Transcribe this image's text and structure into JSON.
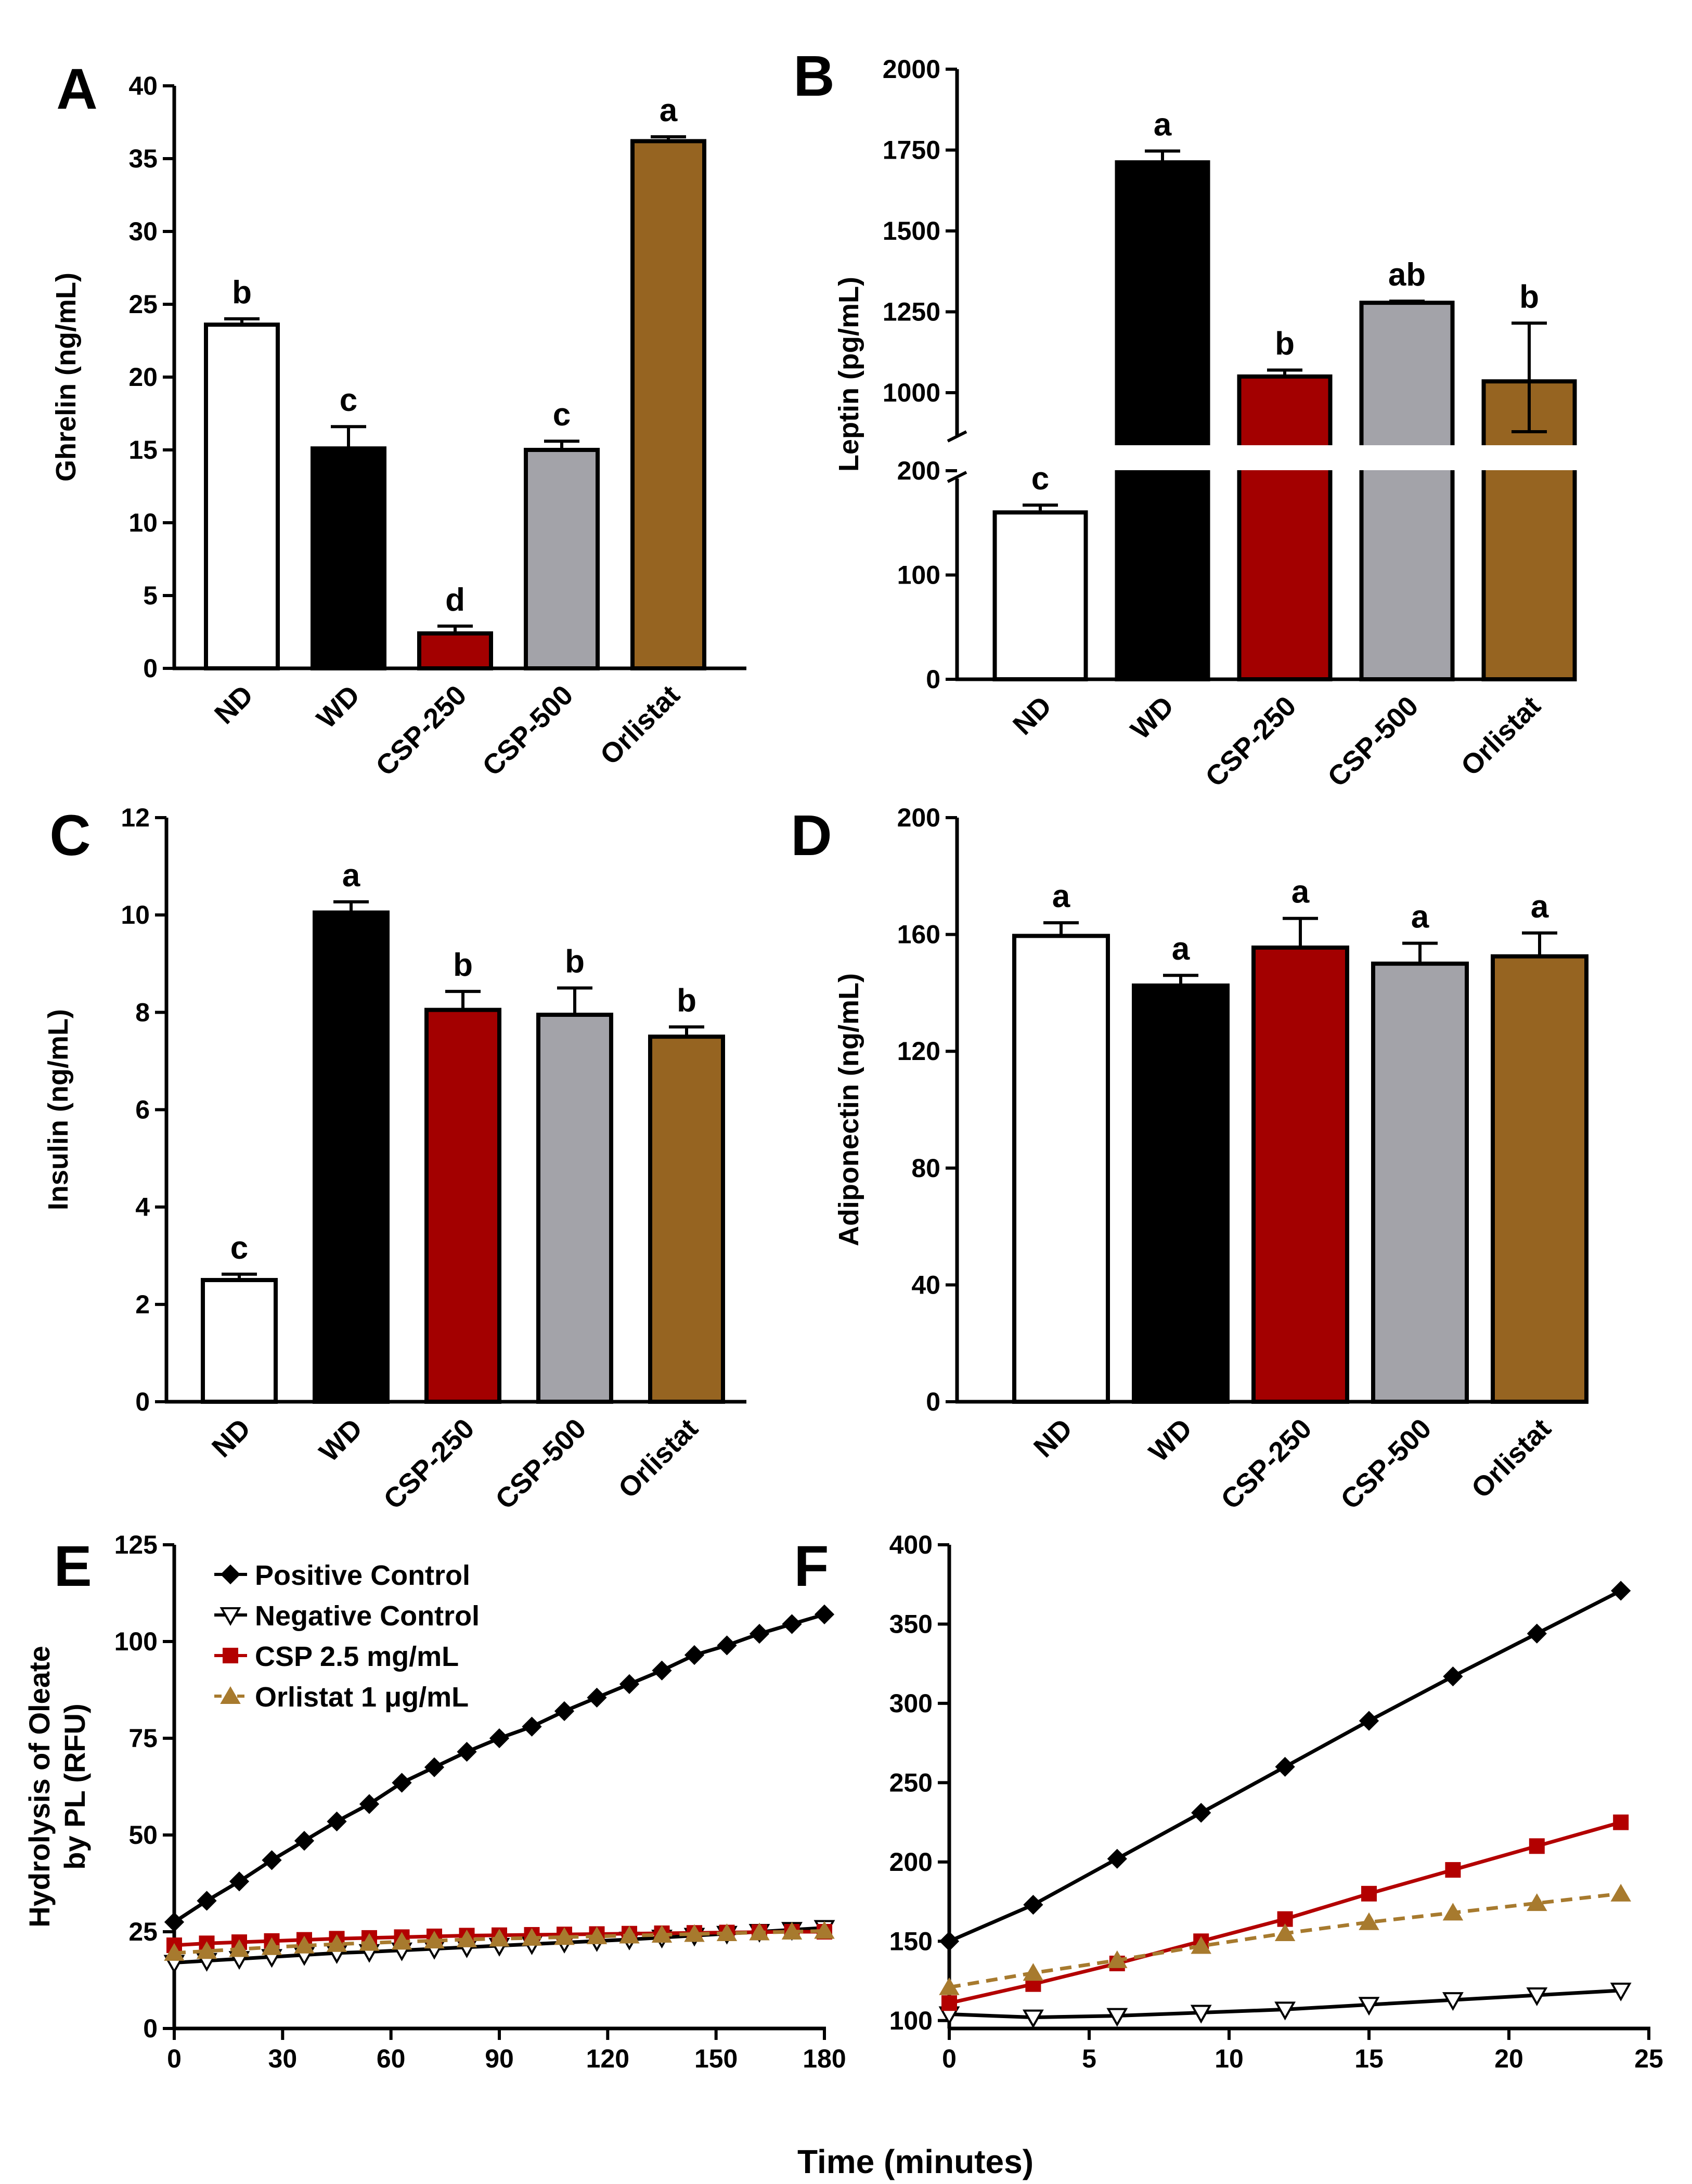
{
  "shared_xlabel": "Time (minutes)",
  "colors": {
    "ND": "#ffffff",
    "WD": "#000000",
    "CSP-250": "#a30000",
    "CSP-500": "#a3a3a9",
    "Orlistat": "#966421",
    "positive": "#000000",
    "negative": "#000000",
    "csp": "#b30000",
    "orlistat": "#a77a2e"
  },
  "chart_data": [
    {
      "panel": "A",
      "type": "bar",
      "ylabel": "Ghrelin (ng/mL)",
      "categories": [
        "ND",
        "WD",
        "CSP-250",
        "CSP-500",
        "Orlistat"
      ],
      "values": [
        23.6,
        15.1,
        2.4,
        15.0,
        36.2
      ],
      "errors": [
        0.4,
        1.5,
        0.5,
        0.6,
        0.3
      ],
      "letters": [
        "b",
        "c",
        "d",
        "c",
        "a"
      ],
      "ylim": [
        0,
        40
      ],
      "yticks": [
        0,
        5,
        10,
        15,
        20,
        25,
        30,
        35,
        40
      ]
    },
    {
      "panel": "B",
      "type": "bar",
      "ylabel": "Leptin (pg/mL)",
      "categories": [
        "ND",
        "WD",
        "CSP-250",
        "CSP-500",
        "Orlistat"
      ],
      "values": [
        160,
        1712,
        1050,
        1278,
        1035
      ],
      "errors": [
        7,
        35,
        20,
        5,
        180
      ],
      "letters": [
        "c",
        "a",
        "b",
        "ab",
        "b"
      ],
      "axis_break": {
        "lower": [
          0,
          200
        ],
        "upper": [
          1000,
          2000
        ]
      },
      "yticks_lower": [
        0,
        100,
        200
      ],
      "yticks_upper": [
        1000,
        1250,
        1500,
        1750,
        2000
      ]
    },
    {
      "panel": "C",
      "type": "bar",
      "ylabel": "Insulin (ng/mL)",
      "categories": [
        "ND",
        "WD",
        "CSP-250",
        "CSP-500",
        "Orlistat"
      ],
      "values": [
        2.5,
        10.05,
        8.05,
        7.95,
        7.5
      ],
      "errors": [
        0.12,
        0.22,
        0.38,
        0.55,
        0.2
      ],
      "letters": [
        "c",
        "a",
        "b",
        "b",
        "b"
      ],
      "ylim": [
        0,
        12
      ],
      "yticks": [
        0,
        2,
        4,
        6,
        8,
        10,
        12
      ]
    },
    {
      "panel": "D",
      "type": "bar",
      "ylabel": "Adiponectin (ng/mL)",
      "categories": [
        "ND",
        "WD",
        "CSP-250",
        "CSP-500",
        "Orlistat"
      ],
      "values": [
        159.5,
        142.5,
        155.5,
        150.0,
        152.5
      ],
      "errors": [
        4.5,
        3.5,
        10.0,
        7.0,
        8.0
      ],
      "letters": [
        "a",
        "a",
        "a",
        "a",
        "a"
      ],
      "ylim": [
        0,
        200
      ],
      "yticks": [
        0,
        40,
        80,
        120,
        160,
        200
      ]
    },
    {
      "panel": "E",
      "type": "line",
      "ylabel_lines": [
        "Hydrolysis of Oleate",
        "by PL (RFU)"
      ],
      "xlabel": "",
      "xlim": [
        0,
        180
      ],
      "ylim": [
        0,
        125
      ],
      "xticks": [
        0,
        30,
        60,
        90,
        120,
        150,
        180
      ],
      "yticks": [
        0,
        25,
        50,
        75,
        100,
        125
      ],
      "legend_position": "top-left",
      "x": [
        0,
        9,
        18,
        27,
        36,
        45,
        54,
        63,
        72,
        81,
        90,
        99,
        108,
        117,
        126,
        135,
        144,
        153,
        162,
        171,
        180
      ],
      "series": [
        {
          "name": "Positive Control",
          "key": "positive",
          "marker": "diamond",
          "dashed": false,
          "values": [
            27.5,
            33,
            38,
            43.5,
            48.5,
            53.5,
            58,
            63.5,
            67.5,
            71.5,
            75,
            78,
            82,
            85.5,
            89,
            92.5,
            96.5,
            99,
            102,
            104.5,
            107
          ]
        },
        {
          "name": "Negative Control",
          "key": "negative",
          "marker": "triangle-down",
          "dashed": false,
          "values": [
            17,
            17.5,
            18,
            18.5,
            19,
            19.5,
            19.8,
            20.2,
            20.6,
            21,
            21.4,
            21.8,
            22.2,
            22.6,
            23,
            23.5,
            24,
            24.5,
            25,
            25.5,
            26
          ]
        },
        {
          "name": "CSP 2.5 mg/mL",
          "key": "csp",
          "marker": "square",
          "dashed": false,
          "values": [
            21.5,
            22,
            22.3,
            22.6,
            22.9,
            23.2,
            23.4,
            23.6,
            23.8,
            24,
            24.1,
            24.2,
            24.3,
            24.4,
            24.5,
            24.6,
            24.7,
            24.8,
            24.9,
            25,
            25
          ]
        },
        {
          "name": "Orlistat 1 μg/mL",
          "key": "orlistat",
          "marker": "triangle-up",
          "dashed": true,
          "values": [
            19.5,
            20,
            20.5,
            21,
            21.4,
            21.8,
            22.1,
            22.4,
            22.7,
            23,
            23.2,
            23.4,
            23.6,
            23.8,
            24,
            24.2,
            24.4,
            24.6,
            24.8,
            25,
            25.2
          ]
        }
      ]
    },
    {
      "panel": "F",
      "type": "line",
      "xlim": [
        0,
        25
      ],
      "ylim": [
        95,
        400
      ],
      "xticks": [
        0,
        5,
        10,
        15,
        20,
        25
      ],
      "yticks": [
        100,
        150,
        200,
        250,
        300,
        350,
        400
      ],
      "x": [
        0,
        3,
        6,
        9,
        12,
        15,
        18,
        21,
        24
      ],
      "series": [
        {
          "name": "Positive Control",
          "key": "positive",
          "marker": "diamond",
          "dashed": false,
          "values": [
            150,
            173,
            202,
            231,
            260,
            289,
            317,
            344,
            371
          ]
        },
        {
          "name": "Negative Control",
          "key": "negative",
          "marker": "triangle-down",
          "dashed": false,
          "values": [
            104,
            102,
            103,
            105,
            107,
            110,
            113,
            116,
            119
          ]
        },
        {
          "name": "CSP 2.5 mg/mL",
          "key": "csp",
          "marker": "square",
          "dashed": false,
          "values": [
            111,
            123,
            136,
            150,
            164,
            180,
            195,
            210,
            225
          ]
        },
        {
          "name": "Orlistat 1 μg/mL",
          "key": "orlistat",
          "marker": "triangle-up",
          "dashed": true,
          "values": [
            121,
            130,
            138,
            147,
            155,
            162,
            168,
            174,
            180
          ]
        }
      ]
    }
  ]
}
